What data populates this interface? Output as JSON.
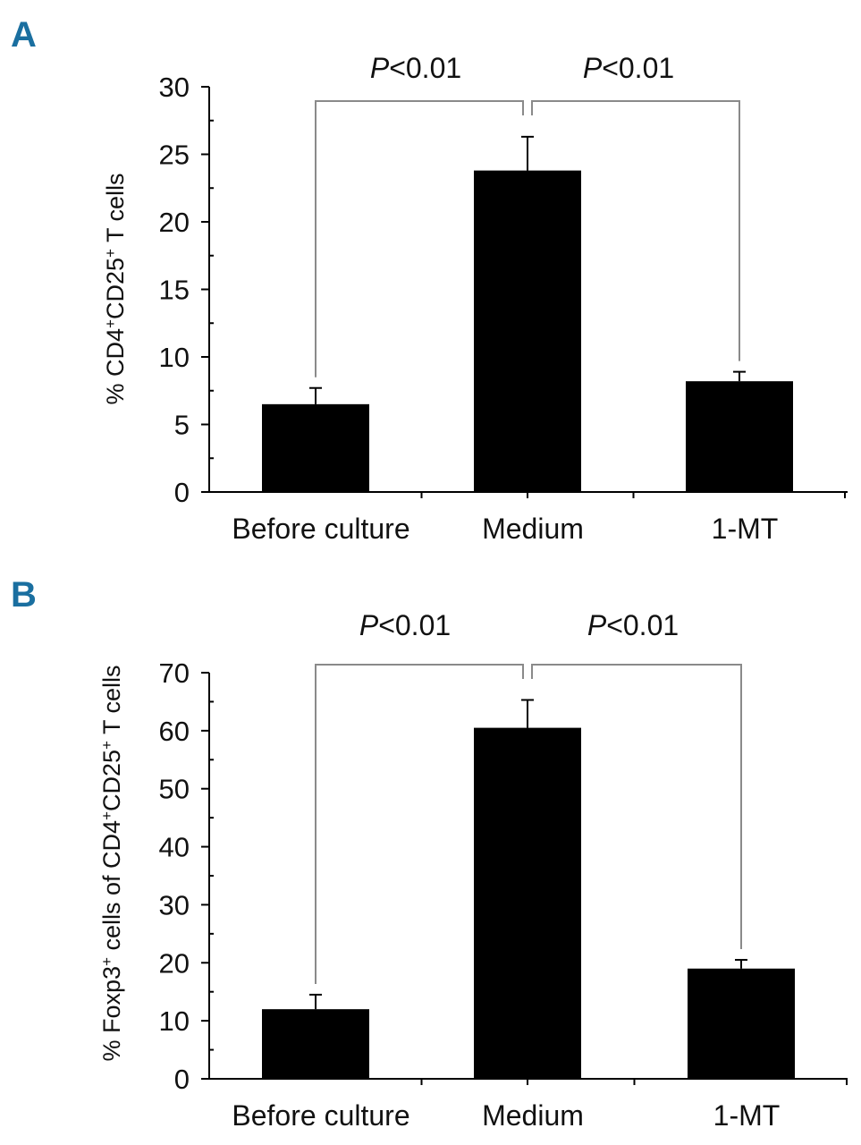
{
  "chart_data": [
    {
      "type": "bar",
      "panel_label": "A",
      "categories": [
        "Before culture",
        "Medium",
        "1-MT"
      ],
      "values": [
        6.5,
        23.8,
        8.2
      ],
      "errors": [
        1.2,
        2.5,
        0.7
      ],
      "ylabel_prefix": "% CD4",
      "ylabel_sup1": "+",
      "ylabel_mid": "CD25",
      "ylabel_sup2": "+",
      "ylabel_suffix": " T cells",
      "ylim": [
        0,
        30
      ],
      "yticks": [
        0,
        5,
        10,
        15,
        20,
        25,
        30
      ],
      "significance": [
        {
          "p_italic": "P",
          "p_text": "<0.01",
          "from": 0,
          "to": 1
        },
        {
          "p_italic": "P",
          "p_text": "<0.01",
          "from": 1,
          "to": 2
        }
      ]
    },
    {
      "type": "bar",
      "panel_label": "B",
      "categories": [
        "Before culture",
        "Medium",
        "1-MT"
      ],
      "values": [
        12,
        60.5,
        19
      ],
      "errors": [
        2.5,
        4.8,
        1.5
      ],
      "ylabel_prefix": "% Foxp3",
      "ylabel_sup1": "+",
      "ylabel_mid": " cells of CD4",
      "ylabel_sup2": "+",
      "ylabel_mid2": "CD25",
      "ylabel_sup3": "+",
      "ylabel_suffix": " T cells",
      "ylim": [
        0,
        70
      ],
      "yticks": [
        0,
        10,
        20,
        30,
        40,
        50,
        60,
        70
      ],
      "significance": [
        {
          "p_italic": "P",
          "p_text": "<0.01",
          "from": 0,
          "to": 1
        },
        {
          "p_italic": "P",
          "p_text": "<0.01",
          "from": 1,
          "to": 2
        }
      ]
    }
  ]
}
